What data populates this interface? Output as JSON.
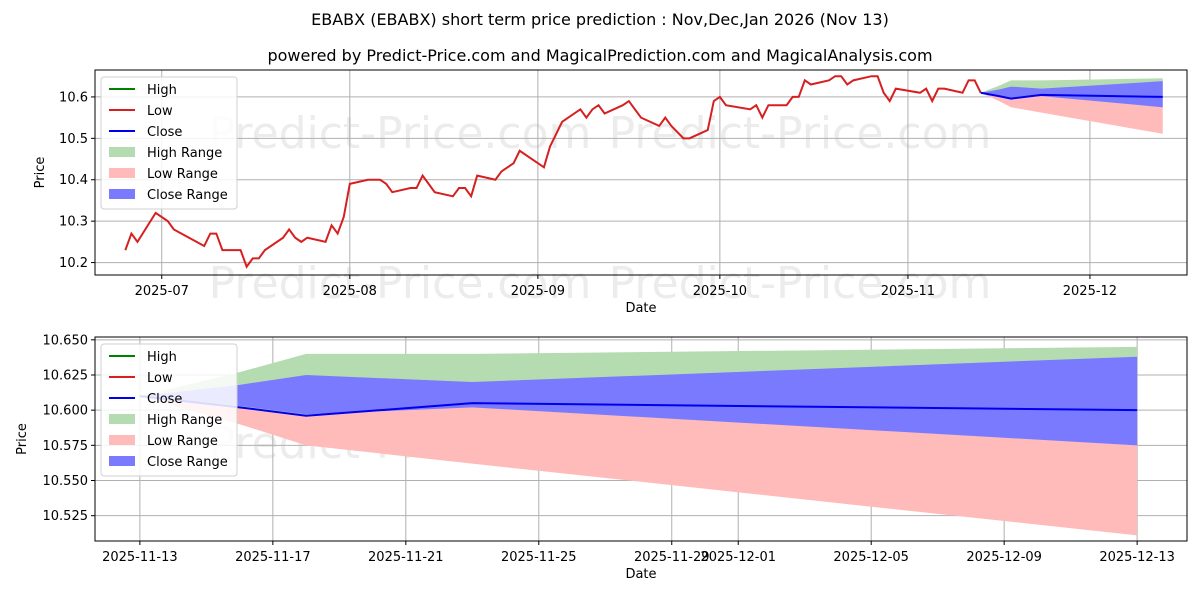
{
  "title": "EBABX (EBABX) short term price prediction : Nov,Dec,Jan 2026 (Nov 13)",
  "subtitle": "powered by Predict-Price.com and MagicalPrediction.com and MagicalAnalysis.com",
  "watermark": "Predict-Price.com",
  "colors": {
    "high": "#008000",
    "low": "#d62020",
    "close": "#0000ee",
    "high_range": "#b5dcb0",
    "low_range": "#ffbaba",
    "close_range": "#7a7aff"
  },
  "legend": [
    "High",
    "Low",
    "Close",
    "High Range",
    "Low Range",
    "Close Range"
  ],
  "chart_data": [
    {
      "type": "line",
      "xlabel": "Date",
      "ylabel": "Price",
      "ylim": [
        10.17,
        10.665
      ],
      "yticks": [
        "10.2",
        "10.3",
        "10.4",
        "10.5",
        "10.6"
      ],
      "xticks": [
        "2025-07",
        "2025-08",
        "2025-09",
        "2025-10",
        "2025-11",
        "2025-12"
      ],
      "grid": true,
      "legend": "top-left"
    },
    {
      "type": "line",
      "xlabel": "Date",
      "ylabel": "Price",
      "ylim": [
        10.507,
        10.652
      ],
      "yticks": [
        "10.525",
        "10.550",
        "10.575",
        "10.600",
        "10.625",
        "10.650"
      ],
      "xticks": [
        "2025-11-13",
        "2025-11-17",
        "2025-11-21",
        "2025-11-25",
        "2025-11-29",
        "2025-12-01",
        "2025-12-05",
        "2025-12-09",
        "2025-12-13"
      ],
      "grid": true,
      "legend": "top-left"
    }
  ],
  "history_low": [
    [
      "2025-06-25",
      10.23
    ],
    [
      "2025-06-26",
      10.27
    ],
    [
      "2025-06-27",
      10.25
    ],
    [
      "2025-06-30",
      10.32
    ],
    [
      "2025-07-02",
      10.3
    ],
    [
      "2025-07-03",
      10.28
    ],
    [
      "2025-07-08",
      10.24
    ],
    [
      "2025-07-09",
      10.27
    ],
    [
      "2025-07-10",
      10.27
    ],
    [
      "2025-07-11",
      10.23
    ],
    [
      "2025-07-14",
      10.23
    ],
    [
      "2025-07-15",
      10.19
    ],
    [
      "2025-07-16",
      10.21
    ],
    [
      "2025-07-17",
      10.21
    ],
    [
      "2025-07-18",
      10.23
    ],
    [
      "2025-07-21",
      10.26
    ],
    [
      "2025-07-22",
      10.28
    ],
    [
      "2025-07-23",
      10.26
    ],
    [
      "2025-07-24",
      10.25
    ],
    [
      "2025-07-25",
      10.26
    ],
    [
      "2025-07-28",
      10.25
    ],
    [
      "2025-07-29",
      10.29
    ],
    [
      "2025-07-30",
      10.27
    ],
    [
      "2025-07-31",
      10.31
    ],
    [
      "2025-08-01",
      10.39
    ],
    [
      "2025-08-04",
      10.4
    ],
    [
      "2025-08-06",
      10.4
    ],
    [
      "2025-08-07",
      10.39
    ],
    [
      "2025-08-08",
      10.37
    ],
    [
      "2025-08-11",
      10.38
    ],
    [
      "2025-08-12",
      10.38
    ],
    [
      "2025-08-13",
      10.41
    ],
    [
      "2025-08-15",
      10.37
    ],
    [
      "2025-08-18",
      10.36
    ],
    [
      "2025-08-19",
      10.38
    ],
    [
      "2025-08-20",
      10.38
    ],
    [
      "2025-08-21",
      10.36
    ],
    [
      "2025-08-22",
      10.41
    ],
    [
      "2025-08-25",
      10.4
    ],
    [
      "2025-08-26",
      10.42
    ],
    [
      "2025-08-28",
      10.44
    ],
    [
      "2025-08-29",
      10.47
    ],
    [
      "2025-09-02",
      10.43
    ],
    [
      "2025-09-03",
      10.48
    ],
    [
      "2025-09-04",
      10.51
    ],
    [
      "2025-09-05",
      10.54
    ],
    [
      "2025-09-08",
      10.57
    ],
    [
      "2025-09-09",
      10.55
    ],
    [
      "2025-09-10",
      10.57
    ],
    [
      "2025-09-11",
      10.58
    ],
    [
      "2025-09-12",
      10.56
    ],
    [
      "2025-09-15",
      10.58
    ],
    [
      "2025-09-16",
      10.59
    ],
    [
      "2025-09-18",
      10.55
    ],
    [
      "2025-09-21",
      10.53
    ],
    [
      "2025-09-22",
      10.55
    ],
    [
      "2025-09-23",
      10.53
    ],
    [
      "2025-09-25",
      10.5
    ],
    [
      "2025-09-26",
      10.5
    ],
    [
      "2025-09-29",
      10.52
    ],
    [
      "2025-09-30",
      10.59
    ],
    [
      "2025-10-01",
      10.6
    ],
    [
      "2025-10-02",
      10.58
    ],
    [
      "2025-10-06",
      10.57
    ],
    [
      "2025-10-07",
      10.58
    ],
    [
      "2025-10-08",
      10.55
    ],
    [
      "2025-10-09",
      10.58
    ],
    [
      "2025-10-12",
      10.58
    ],
    [
      "2025-10-13",
      10.6
    ],
    [
      "2025-10-14",
      10.6
    ],
    [
      "2025-10-15",
      10.64
    ],
    [
      "2025-10-16",
      10.63
    ],
    [
      "2025-10-19",
      10.64
    ],
    [
      "2025-10-20",
      10.65
    ],
    [
      "2025-10-21",
      10.65
    ],
    [
      "2025-10-22",
      10.63
    ],
    [
      "2025-10-23",
      10.64
    ],
    [
      "2025-10-26",
      10.65
    ],
    [
      "2025-10-27",
      10.65
    ],
    [
      "2025-10-28",
      10.61
    ],
    [
      "2025-10-29",
      10.59
    ],
    [
      "2025-10-30",
      10.62
    ],
    [
      "2025-11-03",
      10.61
    ],
    [
      "2025-11-04",
      10.62
    ],
    [
      "2025-11-05",
      10.59
    ],
    [
      "2025-11-06",
      10.62
    ],
    [
      "2025-11-07",
      10.62
    ],
    [
      "2025-11-10",
      10.61
    ],
    [
      "2025-11-11",
      10.64
    ],
    [
      "2025-11-12",
      10.64
    ],
    [
      "2025-11-13",
      10.61
    ]
  ],
  "forecast": {
    "dates": [
      "2025-11-13",
      "2025-11-16",
      "2025-11-18",
      "2025-11-23",
      "2025-12-13"
    ],
    "close": [
      10.61,
      10.602,
      10.596,
      10.605,
      10.6
    ],
    "high_upper": [
      10.61,
      10.627,
      10.64,
      10.64,
      10.645
    ],
    "close_upper": [
      10.61,
      10.618,
      10.625,
      10.62,
      10.638
    ],
    "close_lower": [
      10.61,
      10.603,
      10.597,
      10.602,
      10.575
    ],
    "low_lower": [
      10.61,
      10.59,
      10.575,
      10.562,
      10.511
    ]
  }
}
